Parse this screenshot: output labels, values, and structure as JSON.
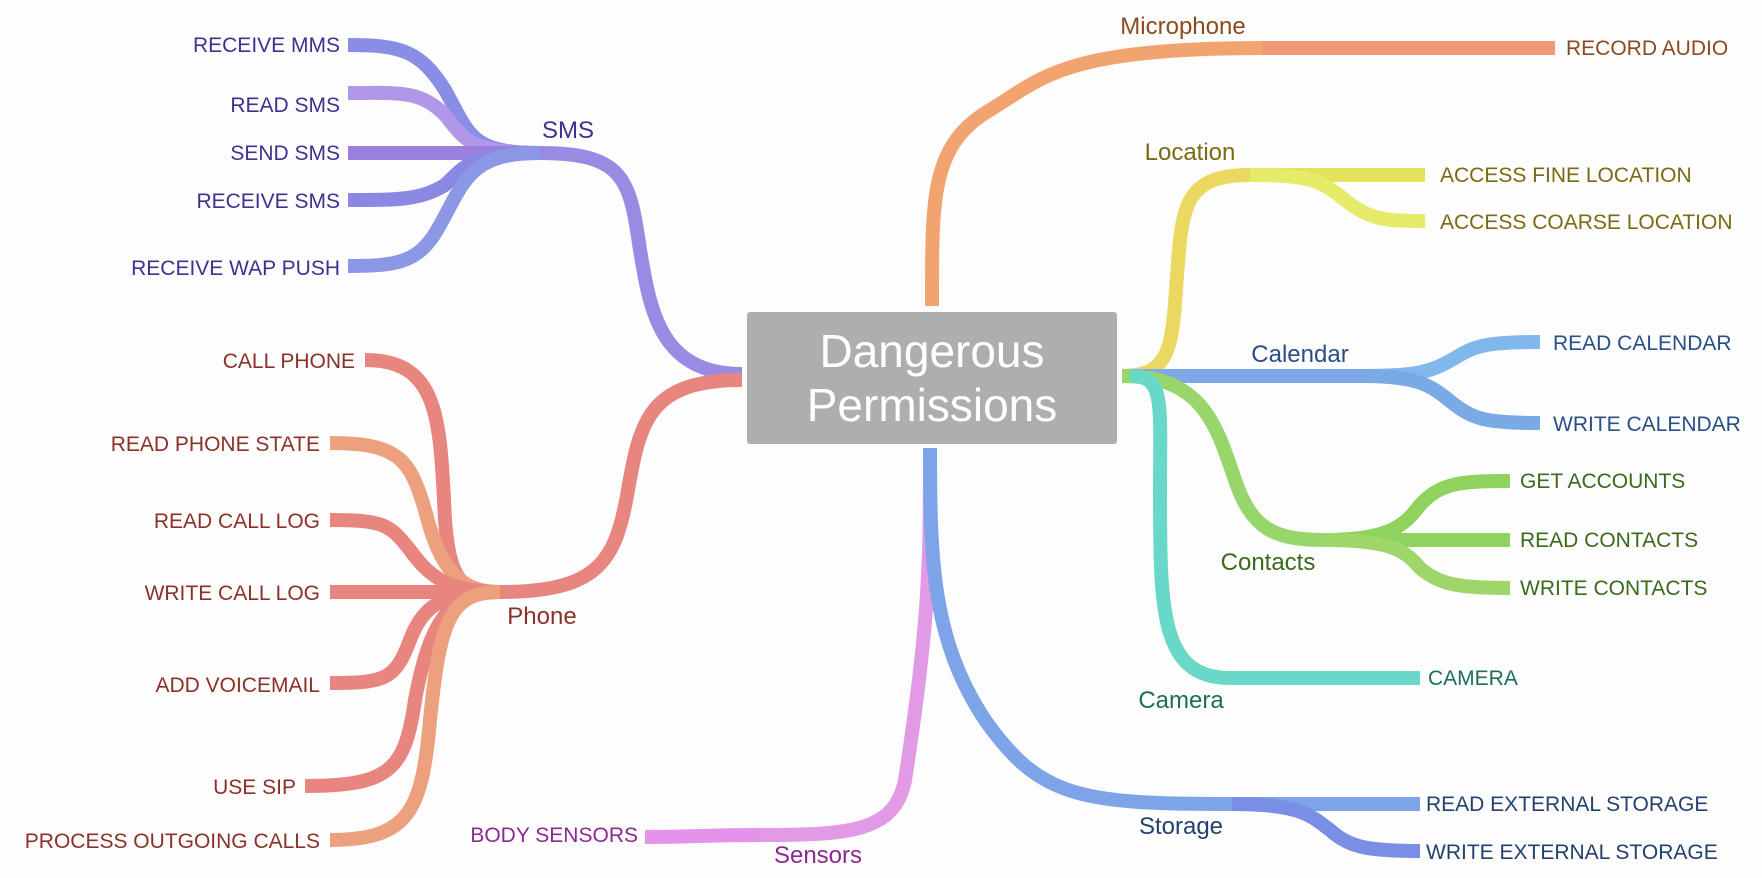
{
  "center": {
    "line1": "Dangerous",
    "line2": "Permissions",
    "fill": "#aeaeae"
  },
  "groups": {
    "sms": {
      "label": "SMS",
      "color": "#9b8ae3",
      "text_color": "#3a3390",
      "items": [
        {
          "label": "RECEIVE MMS",
          "color": "#8a8de6"
        },
        {
          "label": "READ SMS",
          "color": "#b097e8"
        },
        {
          "label": "SEND SMS",
          "color": "#9b7fdf"
        },
        {
          "label": "RECEIVE SMS",
          "color": "#8a88e2"
        },
        {
          "label": "RECEIVE WAP PUSH",
          "color": "#8c98e6"
        }
      ]
    },
    "phone": {
      "label": "Phone",
      "color": "#e8857f",
      "text_color": "#8a3228",
      "items": [
        {
          "label": "CALL PHONE",
          "color": "#e8857f"
        },
        {
          "label": "READ PHONE STATE",
          "color": "#eca07e"
        },
        {
          "label": "READ CALL LOG",
          "color": "#e8857f"
        },
        {
          "label": "WRITE CALL LOG",
          "color": "#e8857f"
        },
        {
          "label": "ADD VOICEMAIL",
          "color": "#e8857f"
        },
        {
          "label": "USE SIP",
          "color": "#e8857f"
        },
        {
          "label": "PROCESS OUTGOING CALLS",
          "color": "#eca07e"
        }
      ]
    },
    "sensors": {
      "label": "Sensors",
      "color": "#e29ae6",
      "text_color": "#8a2a90",
      "items": [
        {
          "label": "BODY SENSORS",
          "color": "#e492ea"
        }
      ]
    },
    "microphone": {
      "label": "Microphone",
      "color": "#f2a470",
      "text_color": "#8c4a1e",
      "items": [
        {
          "label": "RECORD AUDIO",
          "color": "#f09a78"
        }
      ]
    },
    "location": {
      "label": "Location",
      "color": "#ebd860",
      "text_color": "#7a6a12",
      "items": [
        {
          "label": "ACCESS FINE LOCATION",
          "color": "#e3e25a"
        },
        {
          "label": "ACCESS COARSE LOCATION",
          "color": "#e6ec6a"
        }
      ]
    },
    "calendar": {
      "label": "Calendar",
      "color": "#7ea8e8",
      "text_color": "#2a4e86",
      "items": [
        {
          "label": "READ CALENDAR",
          "color": "#80b8ec"
        },
        {
          "label": "WRITE CALENDAR",
          "color": "#7aaae6"
        }
      ]
    },
    "contacts": {
      "label": "Contacts",
      "color": "#96d66a",
      "text_color": "#3c6a1c",
      "items": [
        {
          "label": "GET ACCOUNTS",
          "color": "#8fd25e"
        },
        {
          "label": "READ CONTACTS",
          "color": "#8fd25e"
        },
        {
          "label": "WRITE CONTACTS",
          "color": "#9ed66a"
        }
      ]
    },
    "camera": {
      "label": "Camera",
      "color": "#6ad8c8",
      "text_color": "#1e6e5a",
      "items": [
        {
          "label": "CAMERA",
          "color": "#6ad8c8"
        }
      ]
    },
    "storage": {
      "label": "Storage",
      "color": "#7ea4e8",
      "text_color": "#23406e",
      "items": [
        {
          "label": "READ EXTERNAL STORAGE",
          "color": "#7ea4e8"
        },
        {
          "label": "WRITE EXTERNAL STORAGE",
          "color": "#7a8ee6"
        }
      ]
    }
  }
}
